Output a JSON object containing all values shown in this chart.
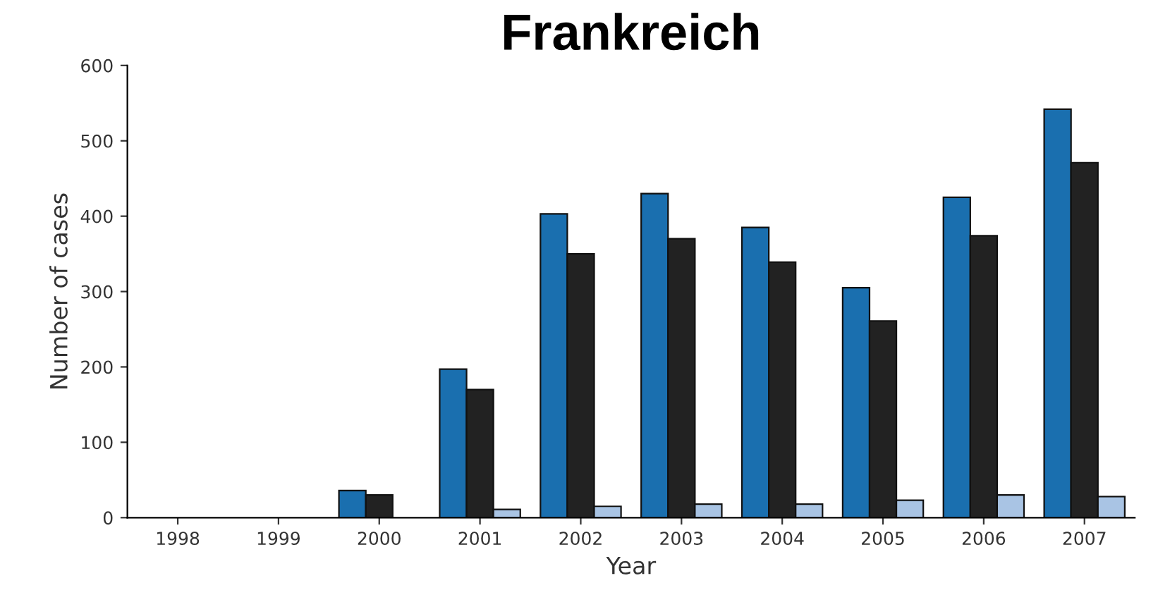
{
  "chart_data": {
    "type": "bar",
    "title": "Frankreich",
    "xlabel": "Year",
    "ylabel": "Number of cases",
    "categories": [
      "1998",
      "1999",
      "2000",
      "2001",
      "2002",
      "2003",
      "2004",
      "2005",
      "2006",
      "2007"
    ],
    "series": [
      {
        "color": "#1a6faf",
        "values": [
          0,
          0,
          36,
          197,
          403,
          430,
          385,
          305,
          425,
          542
        ]
      },
      {
        "color": "#222222",
        "values": [
          0,
          0,
          30,
          170,
          350,
          370,
          339,
          261,
          374,
          471
        ]
      },
      {
        "color": "#a9c4e4",
        "values": [
          0,
          0,
          null,
          11,
          15,
          18,
          18,
          23,
          30,
          28
        ]
      }
    ],
    "ylim": [
      0,
      600
    ],
    "yticks": [
      0,
      100,
      200,
      300,
      400,
      500,
      600
    ],
    "grid": false,
    "legend": false
  }
}
